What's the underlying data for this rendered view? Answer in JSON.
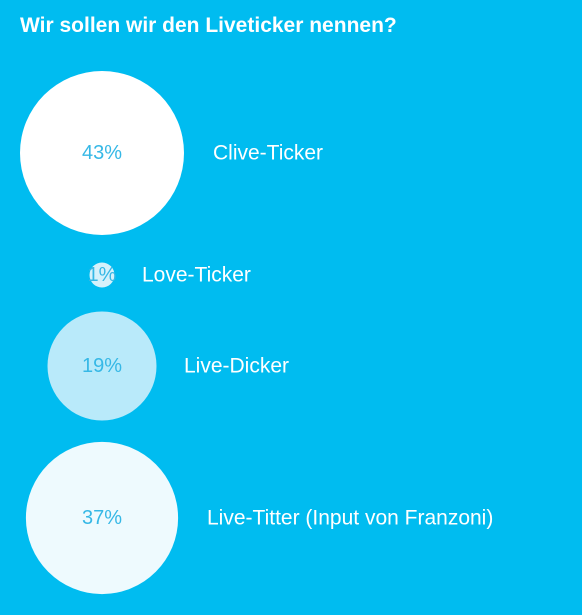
{
  "poll": {
    "title": "Wir sollen wir den Liveticker nennen?"
  },
  "colors": {
    "background": "#00BCF0",
    "option_label": "#ffffff",
    "percent_label": "#36B8E6"
  },
  "chart_data": {
    "type": "bubble",
    "title": "Wir sollen wir den Liveticker nennen?",
    "unit": "%",
    "items": [
      {
        "label": "Clive-Ticker",
        "value": 43,
        "display": "43%",
        "color": "#ffffff"
      },
      {
        "label": "Love-Ticker",
        "value": 1,
        "display": "1%",
        "color": "#D5F1FB"
      },
      {
        "label": "Live-Dicker",
        "value": 19,
        "display": "19%",
        "color": "#B9EAFA"
      },
      {
        "label": "Live-Titter (Input von Franzoni)",
        "value": 37,
        "display": "37%",
        "color": "#EEFAFE"
      }
    ]
  }
}
